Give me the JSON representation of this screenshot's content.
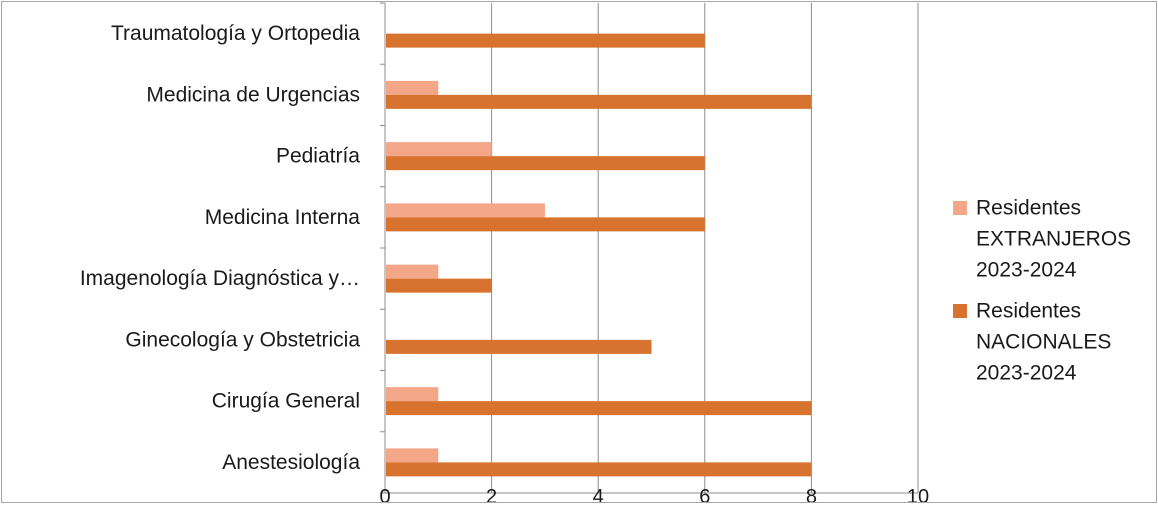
{
  "chart_data": {
    "type": "bar",
    "orientation": "horizontal",
    "categories": [
      "Anestesiología",
      "Cirugía General",
      "Ginecología y Obstetricia",
      "Imagenología Diagnóstica y…",
      "Medicina Interna",
      "Pediatría",
      "Medicina de Urgencias",
      "Traumatología y Ortopedia"
    ],
    "series": [
      {
        "name": "Residentes EXTRANJEROS 2023-2024",
        "legend_lines": [
          "Residentes",
          "EXTRANJEROS",
          "2023-2024"
        ],
        "color": "#F4A688",
        "values": [
          1,
          1,
          0,
          1,
          3,
          2,
          1,
          0
        ]
      },
      {
        "name": "Residentes NACIONALES 2023-2024",
        "legend_lines": [
          "Residentes",
          "NACIONALES",
          "2023-2024"
        ],
        "color": "#D8732F",
        "values": [
          8,
          8,
          5,
          2,
          6,
          6,
          8,
          6
        ]
      }
    ],
    "xlim": [
      0,
      10
    ],
    "xticks": [
      "0",
      "2",
      "4",
      "6",
      "8",
      "10"
    ],
    "grid": true,
    "legend_position": "right",
    "title": "",
    "xlabel": "",
    "ylabel": ""
  }
}
